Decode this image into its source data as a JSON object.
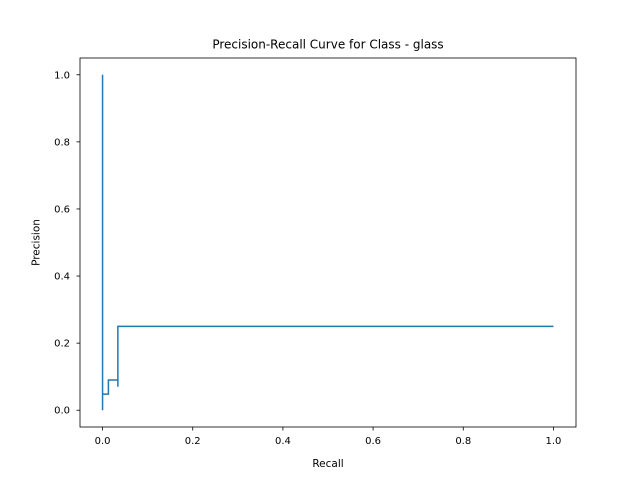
{
  "chart_data": {
    "type": "line",
    "title": "Precision-Recall Curve for Class - glass",
    "xlabel": "Recall",
    "ylabel": "Precision",
    "xlim": [
      -0.05,
      1.05
    ],
    "ylim": [
      -0.05,
      1.05
    ],
    "xticks": [
      0.0,
      0.2,
      0.4,
      0.6,
      0.8,
      1.0
    ],
    "xtick_labels": [
      "0.0",
      "0.2",
      "0.4",
      "0.6",
      "0.8",
      "1.0"
    ],
    "yticks": [
      0.0,
      0.2,
      0.4,
      0.6,
      0.8,
      1.0
    ],
    "ytick_labels": [
      "0.0",
      "0.2",
      "0.4",
      "0.6",
      "0.8",
      "1.0"
    ],
    "grid": false,
    "drawstyle": "steps-post",
    "line_color": "#1f77b4",
    "series": [
      {
        "x": [
          0.0,
          0.0,
          0.0,
          0.013,
          0.013,
          0.034,
          0.034,
          0.034,
          1.0
        ],
        "y": [
          0.0,
          1.0,
          0.048,
          0.048,
          0.09,
          0.09,
          0.07,
          0.25,
          0.25
        ]
      }
    ]
  }
}
